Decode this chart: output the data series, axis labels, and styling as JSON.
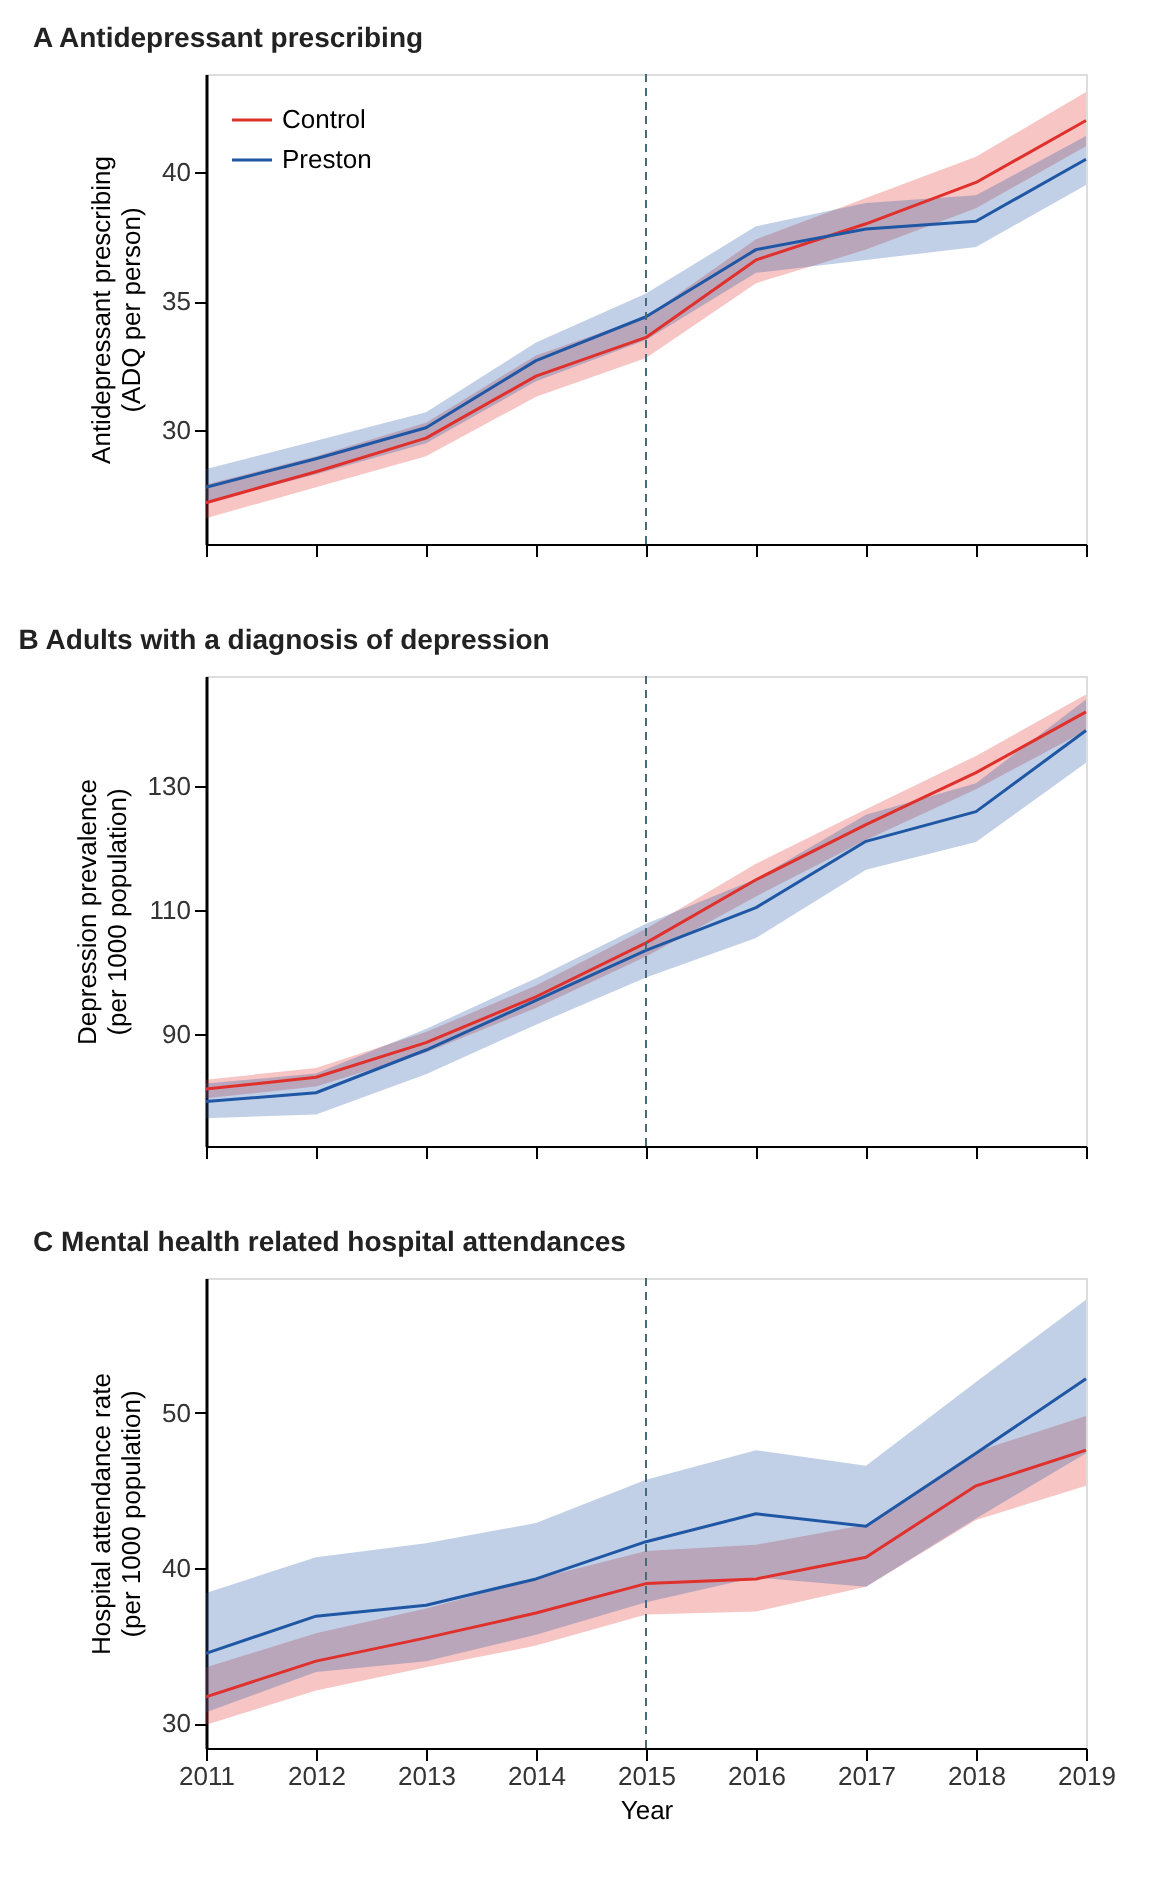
{
  "chart_data": [
    {
      "type": "line",
      "title": "A  Antidepressant prescribing",
      "ylabel": "Antidepressant prescribing\n(ADQ per person)",
      "x": [
        2011,
        2012,
        2013,
        2014,
        2015,
        2016,
        2017,
        2018,
        2019
      ],
      "xlim": [
        2011,
        2019
      ],
      "xticks": [
        2011,
        2012,
        2013,
        2014,
        2015,
        2016,
        2017,
        2018,
        2019
      ],
      "ylim": [
        25.6,
        43.8
      ],
      "yticks": [
        30,
        35,
        40
      ],
      "tick_labels": "y",
      "grid": false,
      "legend": "top left",
      "series": [
        {
          "name": "Control",
          "color": "#e0302c",
          "values": [
            27.2,
            28.4,
            29.7,
            32.1,
            33.6,
            36.6,
            38.0,
            39.6,
            42.0
          ],
          "lower": [
            26.6,
            27.8,
            29.0,
            31.3,
            32.8,
            35.7,
            37.0,
            38.6,
            41.0
          ],
          "upper": [
            27.9,
            29.0,
            30.3,
            32.9,
            34.4,
            37.4,
            39.0,
            40.6,
            43.1
          ]
        },
        {
          "name": "Preston",
          "color": "#1f57a4",
          "values": [
            27.8,
            28.9,
            30.1,
            32.7,
            34.4,
            37.0,
            37.8,
            38.1,
            40.5
          ],
          "lower": [
            27.2,
            28.3,
            29.5,
            31.9,
            33.5,
            36.1,
            36.6,
            37.1,
            39.5
          ],
          "upper": [
            28.5,
            29.6,
            30.7,
            33.4,
            35.3,
            37.9,
            38.8,
            39.1,
            41.4
          ]
        }
      ],
      "ref_lines": [
        {
          "axis": "x",
          "value": 2015,
          "color": "#4a6a7a",
          "line_style": "dashed"
        }
      ]
    },
    {
      "type": "line",
      "title": "B  Adults with a diagnosis of depression",
      "ylabel": "Depression prevalence\n(per 1000 population)",
      "x": [
        2011,
        2012,
        2013,
        2014,
        2015,
        2016,
        2017,
        2018,
        2019
      ],
      "xlim": [
        2011,
        2019
      ],
      "xticks": [
        2011,
        2012,
        2013,
        2014,
        2015,
        2016,
        2017,
        2018,
        2019
      ],
      "ylim": [
        71.9,
        147.8
      ],
      "yticks": [
        90,
        110,
        130
      ],
      "tick_labels": "y",
      "grid": false,
      "series": [
        {
          "color": "#e0302c",
          "values": [
            81.1,
            83.0,
            88.6,
            96.0,
            104.7,
            114.9,
            123.8,
            132.2,
            142.0
          ],
          "lower": [
            79.6,
            81.5,
            87.0,
            94.2,
            102.5,
            112.2,
            121.3,
            129.5,
            139.0
          ],
          "upper": [
            82.6,
            84.5,
            90.3,
            97.8,
            107.0,
            117.5,
            126.3,
            134.9,
            144.8
          ]
        },
        {
          "color": "#1f57a4",
          "values": [
            79.1,
            80.5,
            87.4,
            95.4,
            103.5,
            110.4,
            121.1,
            125.9,
            139.0
          ],
          "lower": [
            76.4,
            77.0,
            83.5,
            91.5,
            99.1,
            105.5,
            116.5,
            121.0,
            133.8
          ],
          "upper": [
            82.0,
            83.6,
            90.8,
            99.0,
            107.8,
            115.0,
            125.4,
            130.5,
            144.0
          ]
        }
      ],
      "ref_lines": [
        {
          "axis": "x",
          "value": 2015,
          "color": "#4a6a7a",
          "line_style": "dashed"
        }
      ]
    },
    {
      "type": "line",
      "title": "C  Mental health related hospital attendances",
      "xlabel": "Year",
      "ylabel": "Hospital attendance rate\n(per 1000 population)",
      "x": [
        2011,
        2012,
        2013,
        2014,
        2015,
        2016,
        2017,
        2018,
        2019
      ],
      "xlim": [
        2011,
        2019
      ],
      "xticks": [
        2011,
        2012,
        2013,
        2014,
        2015,
        2016,
        2017,
        2018,
        2019
      ],
      "ylim": [
        28.4,
        58.7
      ],
      "yticks": [
        30,
        40,
        50
      ],
      "grid": false,
      "series": [
        {
          "color": "#e0302c",
          "values": [
            31.7,
            34.0,
            35.5,
            37.1,
            39.0,
            39.3,
            40.7,
            45.3,
            47.6
          ],
          "lower": [
            29.9,
            32.1,
            33.6,
            35.0,
            37.0,
            37.2,
            38.8,
            43.1,
            45.3
          ],
          "upper": [
            33.6,
            35.8,
            37.4,
            39.3,
            41.1,
            41.5,
            42.8,
            47.5,
            49.8
          ]
        },
        {
          "color": "#1f57a4",
          "values": [
            34.5,
            36.9,
            37.6,
            39.3,
            41.7,
            43.5,
            42.7,
            47.4,
            52.2
          ],
          "lower": [
            30.7,
            33.3,
            34.0,
            35.7,
            37.8,
            39.4,
            38.8,
            43.2,
            47.4
          ],
          "upper": [
            38.4,
            40.7,
            41.6,
            42.9,
            45.7,
            47.6,
            46.6,
            52.0,
            57.3
          ]
        }
      ],
      "ref_lines": [
        {
          "axis": "x",
          "value": 2015,
          "color": "#4a6a7a",
          "line_style": "dashed"
        }
      ]
    }
  ]
}
